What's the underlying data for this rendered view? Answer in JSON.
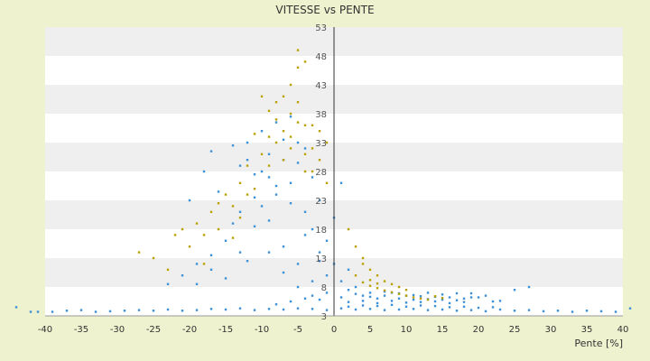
{
  "chart_data": {
    "type": "scatter",
    "title": "VITESSE vs PENTE",
    "xlabel": "Pente [%]",
    "ylabel": "",
    "xlim": [
      -40,
      40
    ],
    "ylim": [
      3,
      53
    ],
    "x_ticks": [
      "-40",
      "-35",
      "-30",
      "-25",
      "-20",
      "-15",
      "-10",
      "-5",
      "0",
      "5",
      "10",
      "15",
      "20",
      "25",
      "30",
      "35",
      "40"
    ],
    "y_ticks": [
      "3",
      "8",
      "13",
      "18",
      "23",
      "28",
      "33",
      "38",
      "43",
      "48",
      "53"
    ],
    "grid": "horizontal alternating bands",
    "colors": {
      "background": "#eef2cf",
      "plot_band_light": "#ffffff",
      "plot_band_dark": "#efefef",
      "series_blue": "#3d8fd6",
      "series_yellow": "#b8a000"
    },
    "series": [
      {
        "color": "#3d8fd6",
        "points": [
          [
            -44,
            4.5
          ],
          [
            -42,
            3.7
          ],
          [
            -41,
            3.7
          ],
          [
            -39,
            3.7
          ],
          [
            -37,
            3.9
          ],
          [
            -35,
            4.0
          ],
          [
            -33,
            3.7
          ],
          [
            -31,
            3.8
          ],
          [
            -29,
            3.9
          ],
          [
            -27,
            4.0
          ],
          [
            -25,
            3.9
          ],
          [
            -23,
            4.1
          ],
          [
            -21,
            3.9
          ],
          [
            -19,
            4.0
          ],
          [
            -17,
            4.2
          ],
          [
            -15,
            4.1
          ],
          [
            -13,
            4.3
          ],
          [
            -11,
            4.0
          ],
          [
            -9,
            4.2
          ],
          [
            -7,
            4.1
          ],
          [
            -5,
            4.3
          ],
          [
            -3,
            4.2
          ],
          [
            -1,
            4.0
          ],
          [
            1,
            4.3
          ],
          [
            3,
            4.1
          ],
          [
            5,
            4.2
          ],
          [
            7,
            4.0
          ],
          [
            9,
            4.1
          ],
          [
            11,
            4.2
          ],
          [
            13,
            4.0
          ],
          [
            15,
            4.1
          ],
          [
            17,
            3.9
          ],
          [
            19,
            4.0
          ],
          [
            21,
            3.8
          ],
          [
            23,
            4.1
          ],
          [
            25,
            3.9
          ],
          [
            27,
            4.0
          ],
          [
            29,
            3.8
          ],
          [
            31,
            3.9
          ],
          [
            33,
            3.7
          ],
          [
            35,
            3.9
          ],
          [
            37,
            3.8
          ],
          [
            39,
            3.7
          ],
          [
            41,
            4.3
          ],
          [
            -19,
            8.5
          ],
          [
            -17,
            11.0
          ],
          [
            -15,
            9.5
          ],
          [
            -13,
            14.0
          ],
          [
            -12,
            12.5
          ],
          [
            -11,
            18.5
          ],
          [
            -10,
            22.0
          ],
          [
            -9,
            27.0
          ],
          [
            -8,
            24.0
          ],
          [
            -7,
            30.0
          ],
          [
            -6,
            26.0
          ],
          [
            -5,
            33.0
          ],
          [
            -4,
            21.0
          ],
          [
            -3,
            18.0
          ],
          [
            -2,
            14.0
          ],
          [
            -1,
            10.0
          ],
          [
            -20,
            23.0
          ],
          [
            -18,
            28.0
          ],
          [
            -17,
            31.5
          ],
          [
            -16,
            24.5
          ],
          [
            -14,
            19.0
          ],
          [
            -13,
            29.0
          ],
          [
            -12,
            33.0
          ],
          [
            -11,
            27.5
          ],
          [
            -10,
            35.0
          ],
          [
            -9,
            31.0
          ],
          [
            -8,
            36.5
          ],
          [
            -7,
            33.5
          ],
          [
            -6,
            37.5
          ],
          [
            -5,
            29.5
          ],
          [
            -4,
            32.0
          ],
          [
            -3,
            27.0
          ],
          [
            -2,
            23.0
          ],
          [
            -1,
            16.0
          ],
          [
            0,
            12.0
          ],
          [
            0,
            20.0
          ],
          [
            1,
            26.0
          ],
          [
            1,
            9.0
          ],
          [
            2,
            11.0
          ],
          [
            2,
            7.5
          ],
          [
            3,
            8.0
          ],
          [
            4,
            6.5
          ],
          [
            5,
            7.0
          ],
          [
            6,
            6.0
          ],
          [
            7,
            6.5
          ],
          [
            8,
            7.0
          ],
          [
            9,
            6.0
          ],
          [
            10,
            6.5
          ],
          [
            11,
            5.8
          ],
          [
            12,
            6.4
          ],
          [
            13,
            5.9
          ],
          [
            14,
            6.3
          ],
          [
            15,
            5.8
          ],
          [
            16,
            6.2
          ],
          [
            17,
            5.7
          ],
          [
            18,
            6.0
          ],
          [
            19,
            6.9
          ],
          [
            20,
            6.2
          ],
          [
            22,
            5.5
          ],
          [
            25,
            7.5
          ],
          [
            27,
            8.0
          ],
          [
            1,
            6.2
          ],
          [
            2,
            5.4
          ],
          [
            3,
            6.8
          ],
          [
            4,
            5.6
          ],
          [
            5,
            6.3
          ],
          [
            6,
            5.2
          ],
          [
            7,
            7.2
          ],
          [
            8,
            5.6
          ],
          [
            9,
            6.9
          ],
          [
            10,
            5.3
          ],
          [
            11,
            6.6
          ],
          [
            12,
            5.4
          ],
          [
            13,
            7.0
          ],
          [
            14,
            5.5
          ],
          [
            15,
            6.7
          ],
          [
            16,
            5.2
          ],
          [
            17,
            6.9
          ],
          [
            18,
            5.4
          ],
          [
            19,
            6.2
          ],
          [
            21,
            6.5
          ],
          [
            23,
            5.6
          ],
          [
            2,
            4.6
          ],
          [
            4,
            4.8
          ],
          [
            6,
            4.7
          ],
          [
            8,
            4.9
          ],
          [
            10,
            4.6
          ],
          [
            12,
            4.8
          ],
          [
            14,
            4.7
          ],
          [
            16,
            4.5
          ],
          [
            18,
            4.6
          ],
          [
            20,
            4.4
          ],
          [
            22,
            4.5
          ],
          [
            -8,
            5.0
          ],
          [
            -6,
            5.5
          ],
          [
            -4,
            6.0
          ],
          [
            -2,
            5.8
          ],
          [
            -1,
            7.0
          ],
          [
            -3,
            9.0
          ],
          [
            -5,
            12.0
          ],
          [
            -7,
            15.0
          ],
          [
            -9,
            19.5
          ],
          [
            -11,
            23.5
          ],
          [
            -13,
            21.0
          ],
          [
            -15,
            16.0
          ],
          [
            -17,
            13.5
          ],
          [
            -19,
            12.0
          ],
          [
            -21,
            10.0
          ],
          [
            -23,
            8.5
          ],
          [
            -14,
            32.5
          ],
          [
            -12,
            30.0
          ],
          [
            -10,
            28.0
          ],
          [
            -8,
            25.5
          ],
          [
            -6,
            22.5
          ],
          [
            -4,
            17.0
          ],
          [
            -2,
            12.5
          ],
          [
            -9,
            14.0
          ],
          [
            -7,
            10.5
          ],
          [
            -5,
            8.0
          ],
          [
            -3,
            6.5
          ]
        ]
      },
      {
        "color": "#b8a000",
        "points": [
          [
            -27,
            14.0
          ],
          [
            -25,
            13.0
          ],
          [
            -23,
            11.0
          ],
          [
            -22,
            17.0
          ],
          [
            -20,
            15.0
          ],
          [
            -19,
            19.0
          ],
          [
            -18,
            12.0
          ],
          [
            -17,
            21.0
          ],
          [
            -16,
            18.0
          ],
          [
            -15,
            24.0
          ],
          [
            -14,
            22.0
          ],
          [
            -13,
            26.0
          ],
          [
            -12,
            29.0
          ],
          [
            -11,
            25.0
          ],
          [
            -10,
            31.0
          ],
          [
            -9,
            34.0
          ],
          [
            -8,
            37.0
          ],
          [
            -7,
            41.0
          ],
          [
            -7,
            35.0
          ],
          [
            -6,
            43.0
          ],
          [
            -6,
            38.0
          ],
          [
            -5,
            46.0
          ],
          [
            -5,
            49.0
          ],
          [
            -4,
            47.0
          ],
          [
            -5,
            40.0
          ],
          [
            -4,
            36.0
          ],
          [
            -3,
            32.0
          ],
          [
            -3,
            28.0
          ],
          [
            -2,
            35.0
          ],
          [
            -2,
            30.0
          ],
          [
            -1,
            33.0
          ],
          [
            -1,
            26.0
          ],
          [
            -9,
            38.5
          ],
          [
            -8,
            33.0
          ],
          [
            -7,
            30.0
          ],
          [
            -6,
            34.0
          ],
          [
            -5,
            36.5
          ],
          [
            -4,
            31.0
          ],
          [
            -3,
            36.0
          ],
          [
            -10,
            41.0
          ],
          [
            -8,
            40.0
          ],
          [
            -6,
            32.0
          ],
          [
            -4,
            28.0
          ],
          [
            -9,
            29.0
          ],
          [
            -11,
            34.5
          ],
          [
            -12,
            24.0
          ],
          [
            -13,
            20.0
          ],
          [
            -14,
            16.5
          ],
          [
            -16,
            22.5
          ],
          [
            -18,
            17.0
          ],
          [
            -21,
            18.0
          ],
          [
            2,
            18.0
          ],
          [
            3,
            15.0
          ],
          [
            4,
            13.0
          ],
          [
            5,
            11.0
          ],
          [
            6,
            10.0
          ],
          [
            7,
            9.0
          ],
          [
            8,
            8.5
          ],
          [
            9,
            8.0
          ],
          [
            10,
            7.5
          ],
          [
            3,
            10.0
          ],
          [
            4,
            8.8
          ],
          [
            5,
            8.2
          ],
          [
            6,
            7.8
          ],
          [
            7,
            7.4
          ],
          [
            8,
            7.1
          ],
          [
            9,
            6.8
          ],
          [
            10,
            6.5
          ],
          [
            11,
            6.2
          ],
          [
            12,
            6.0
          ],
          [
            13,
            5.8
          ],
          [
            14,
            6.4
          ],
          [
            15,
            6.1
          ],
          [
            4,
            12.0
          ],
          [
            5,
            9.2
          ],
          [
            6,
            8.6
          ]
        ]
      }
    ]
  }
}
